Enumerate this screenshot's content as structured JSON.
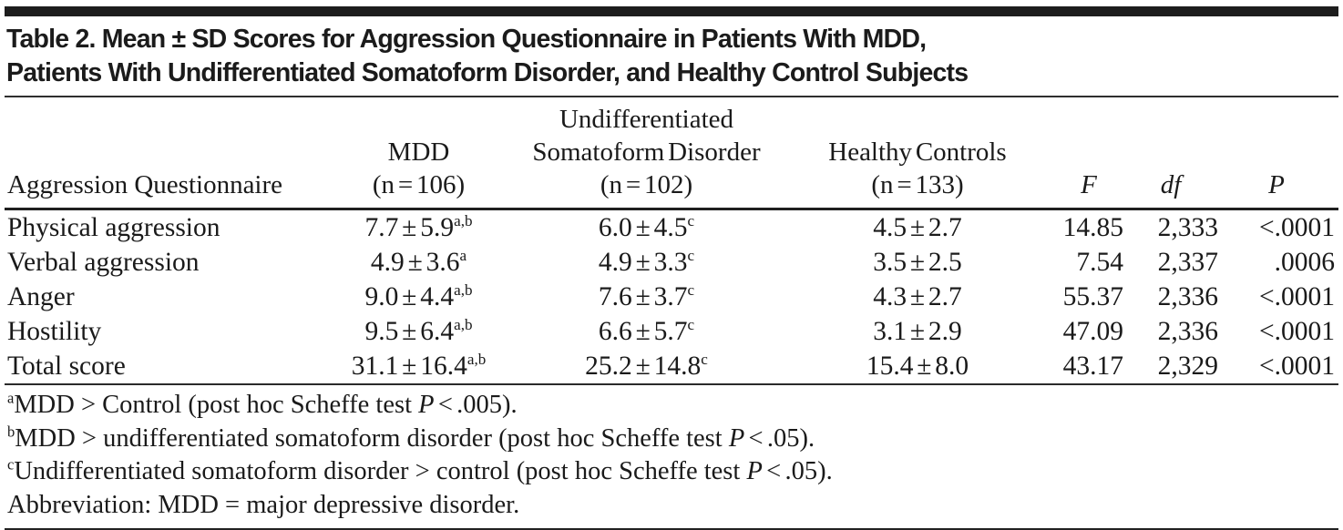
{
  "title": {
    "line1": "Table 2. Mean ± SD Scores for Aggression Questionnaire in Patients With MDD,",
    "line2": "Patients With Undifferentiated Somatoform Disorder, and Healthy Control Subjects"
  },
  "table": {
    "header": {
      "row_label": "Aggression Questionnaire",
      "mdd": [
        "MDD",
        "(n = 106)"
      ],
      "usd": [
        "Undifferentiated",
        "Somatoform Disorder",
        "(n = 102)"
      ],
      "healthy": [
        "Healthy Controls",
        "(n = 133)"
      ],
      "f": "F",
      "df": "df",
      "p": "P"
    },
    "rows": [
      {
        "label": "Physical aggression",
        "mdd": "7.7 ± 5.9",
        "mdd_sup": "a,b",
        "usd": "6.0 ± 4.5",
        "usd_sup": "c",
        "hc": "4.5 ± 2.7",
        "f": "14.85",
        "df": "2,333",
        "p": "<.0001"
      },
      {
        "label": "Verbal aggression",
        "mdd": "4.9 ± 3.6",
        "mdd_sup": "a",
        "usd": "4.9 ± 3.3",
        "usd_sup": "c",
        "hc": "3.5 ± 2.5",
        "f": "7.54",
        "df": "2,337",
        "p": ".0006"
      },
      {
        "label": "Anger",
        "mdd": "9.0 ± 4.4",
        "mdd_sup": "a,b",
        "usd": "7.6 ± 3.7",
        "usd_sup": "c",
        "hc": "4.3 ± 2.7",
        "f": "55.37",
        "df": "2,336",
        "p": "<.0001"
      },
      {
        "label": "Hostility",
        "mdd": "9.5 ± 6.4",
        "mdd_sup": "a,b",
        "usd": "6.6 ± 5.7",
        "usd_sup": "c",
        "hc": "3.1 ± 2.9",
        "f": "47.09",
        "df": "2,336",
        "p": "<.0001"
      },
      {
        "label": "Total score",
        "mdd": "31.1 ± 16.4",
        "mdd_sup": "a,b",
        "usd": "25.2 ± 14.8",
        "usd_sup": "c",
        "hc": "15.4 ± 8.0",
        "f": "43.17",
        "df": "2,329",
        "p": "<.0001"
      }
    ]
  },
  "footnotes": [
    {
      "sup": "a",
      "pre": "MDD > Control (post hoc Scheffe test ",
      "italic": "P",
      "post": " < .005)."
    },
    {
      "sup": "b",
      "pre": "MDD > undifferentiated somatoform disorder (post hoc Scheffe test ",
      "italic": "P",
      "post": " < .05)."
    },
    {
      "sup": "c",
      "pre": "Undifferentiated somatoform disorder > control (post hoc Scheffe test ",
      "italic": "P",
      "post": " < .05)."
    },
    {
      "sup": "",
      "pre": "Abbreviation: MDD = major depressive disorder.",
      "italic": "",
      "post": ""
    }
  ],
  "colors": {
    "text": "#1a1a1a",
    "rule": "#1f1f1f",
    "background": "#ffffff"
  }
}
